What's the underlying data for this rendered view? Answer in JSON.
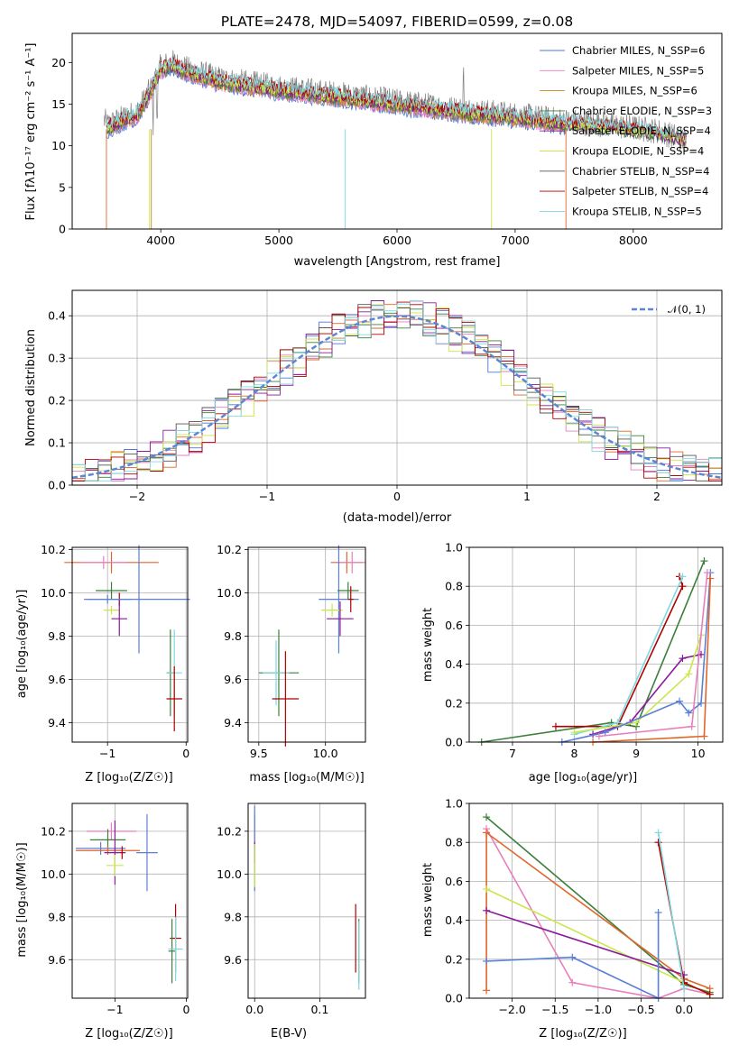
{
  "chart_data": [
    {
      "type": "line",
      "title": "PLATE=2478, MJD=54097, FIBERID=0599, z=0.08",
      "xlabel": "wavelength [Angstrom, rest frame]",
      "ylabel": "Flux [fλ10⁻¹⁷ erg cm⁻² s⁻¹ A⁻¹]",
      "xlim": [
        3250,
        8750
      ],
      "ylim": [
        0,
        23.5
      ],
      "xticks": [
        "4000",
        "5000",
        "6000",
        "7000",
        "8000"
      ],
      "yticks": [
        "0",
        "5",
        "10",
        "15",
        "20"
      ],
      "legend_position": "upper-right",
      "legend": [
        "Chabrier MILES, N_SSP=6",
        "Salpeter MILES, N_SSP=5",
        "Kroupa MILES, N_SSP=6",
        "Chabrier ELODIE, N_SSP=3",
        "Salpeter ELODIE, N_SSP=4",
        "Kroupa ELODIE, N_SSP=4",
        "Chabrier STELIB, N_SSP=4",
        "Salpeter STELIB, N_SSP=4",
        "Kroupa STELIB, N_SSP=5"
      ],
      "series_colors": [
        "#4f78d4",
        "#e87fbd",
        "#c88a1a",
        "#3c7f3c",
        "#8b1a9b",
        "#c8e84a",
        "#555555",
        "#b00000",
        "#7fd8e0"
      ],
      "continuum": {
        "x": [
          3500,
          3550,
          3700,
          3800,
          3900,
          4000,
          4100,
          4200,
          4500,
          5000,
          5500,
          6000,
          6500,
          7000,
          7400,
          7800,
          8200,
          8500
        ],
        "y": [
          13.5,
          12.5,
          13.5,
          14.0,
          16.5,
          19.5,
          20.0,
          19.3,
          18.0,
          17.0,
          16.2,
          15.3,
          14.4,
          13.7,
          13.0,
          12.5,
          11.8,
          10.5
        ]
      }
    },
    {
      "type": "line",
      "xlabel": "(data-model)/error",
      "ylabel": "Normed distribution",
      "xlim": [
        -2.5,
        2.5
      ],
      "ylim": [
        0,
        0.46
      ],
      "xticks": [
        "−2",
        "−1",
        "0",
        "1",
        "2"
      ],
      "yticks": [
        "0.0",
        "0.1",
        "0.2",
        "0.3",
        "0.4"
      ],
      "grid": true,
      "legend_position": "upper-right",
      "legend": [
        "𝒩(0, 1)"
      ],
      "reference_curve": "standard normal, dashed",
      "histogram_series_count": 9
    },
    {
      "type": "scatter",
      "xlabel": "Z [log₁₀(Z/Z☉)]",
      "ylabel": "age  [log₁₀(age/yr)]",
      "xlim": [
        -1.45,
        0.02
      ],
      "ylim": [
        9.31,
        10.21
      ],
      "xticks": [
        "−1",
        "0"
      ],
      "yticks": [
        "9.4",
        "9.6",
        "9.8",
        "10.0",
        "10.2"
      ],
      "grid": true,
      "points": [
        {
          "x": -0.95,
          "y": 10.14,
          "xerr": 0.6,
          "yerr": 0.05,
          "color": "#e0662a"
        },
        {
          "x": -1.05,
          "y": 10.14,
          "xerr": 0.3,
          "yerr": 0.03,
          "color": "#e87fbd"
        },
        {
          "x": -1.0,
          "y": 9.97,
          "xerr": 0.3,
          "yerr": 0.02,
          "color": "#5b7fd6"
        },
        {
          "x": -0.95,
          "y": 10.01,
          "xerr": 0.2,
          "yerr": 0.04,
          "color": "#3c7f3c"
        },
        {
          "x": -0.85,
          "y": 9.97,
          "xerr": 0.02,
          "yerr": 0.03,
          "color": "#b00000"
        },
        {
          "x": -0.95,
          "y": 9.92,
          "xerr": 0.1,
          "yerr": 0.02,
          "color": "#c8e84a"
        },
        {
          "x": -0.85,
          "y": 9.88,
          "xerr": 0.1,
          "yerr": 0.08,
          "color": "#8b1a9b"
        },
        {
          "x": -0.6,
          "y": 9.97,
          "xerr": 0.65,
          "yerr": 0.25,
          "color": "#5b7fd6"
        },
        {
          "x": -0.2,
          "y": 9.63,
          "xerr": 0.05,
          "yerr": 0.2,
          "color": "#3c7f3c"
        },
        {
          "x": -0.15,
          "y": 9.63,
          "xerr": 0.1,
          "yerr": 0.2,
          "color": "#7fd8e0"
        },
        {
          "x": -0.15,
          "y": 9.51,
          "xerr": 0.1,
          "yerr": 0.15,
          "color": "#b00000"
        }
      ]
    },
    {
      "type": "scatter",
      "xlabel": "mass [log₁₀(M/M☉)]",
      "xlim": [
        9.42,
        10.3
      ],
      "ylim": [
        9.31,
        10.21
      ],
      "xticks": [
        "9.5",
        "10.0"
      ],
      "yticks": [
        "9.4",
        "9.6",
        "9.8",
        "10.0",
        "10.2"
      ],
      "grid": true,
      "points": [
        {
          "x": 10.16,
          "y": 10.14,
          "xerr": 0.12,
          "yerr": 0.05,
          "color": "#e0662a"
        },
        {
          "x": 10.2,
          "y": 10.14,
          "xerr": 0.1,
          "yerr": 0.05,
          "color": "#e87fbd"
        },
        {
          "x": 10.1,
          "y": 9.97,
          "xerr": 0.15,
          "yerr": 0.25,
          "color": "#5b7fd6"
        },
        {
          "x": 10.17,
          "y": 10.01,
          "xerr": 0.08,
          "yerr": 0.04,
          "color": "#3c7f3c"
        },
        {
          "x": 10.19,
          "y": 9.97,
          "xerr": 0.02,
          "yerr": 0.06,
          "color": "#b00000"
        },
        {
          "x": 10.05,
          "y": 9.92,
          "xerr": 0.08,
          "yerr": 0.03,
          "color": "#c8e84a"
        },
        {
          "x": 10.11,
          "y": 9.88,
          "xerr": 0.1,
          "yerr": 0.08,
          "color": "#8b1a9b"
        },
        {
          "x": 9.65,
          "y": 9.63,
          "xerr": 0.15,
          "yerr": 0.2,
          "color": "#3c7f3c"
        },
        {
          "x": 9.63,
          "y": 9.63,
          "xerr": 0.1,
          "yerr": 0.15,
          "color": "#7fd8e0"
        },
        {
          "x": 9.7,
          "y": 9.51,
          "xerr": 0.1,
          "yerr": 0.22,
          "color": "#b00000"
        }
      ]
    },
    {
      "type": "line",
      "xlabel": "age  [log₁₀(age/yr)]",
      "ylabel": "mass weight",
      "xlim": [
        6.3,
        10.4
      ],
      "ylim": [
        0,
        1.0
      ],
      "xticks": [
        "7",
        "8",
        "9",
        "10"
      ],
      "yticks": [
        "0.0",
        "0.2",
        "0.4",
        "0.6",
        "0.8",
        "1.0"
      ],
      "grid": true,
      "series": [
        {
          "x": [
            6.5,
            8.6,
            9.0,
            10.1
          ],
          "y": [
            0.0,
            0.1,
            0.08,
            0.93
          ],
          "color": "#3c7f3c"
        },
        {
          "x": [
            7.7,
            8.7,
            9.75,
            9.7
          ],
          "y": [
            0.08,
            0.08,
            0.8,
            0.85
          ],
          "color": "#b00000"
        },
        {
          "x": [
            8.0,
            8.7,
            9.75
          ],
          "y": [
            0.04,
            0.1,
            0.85
          ],
          "color": "#7fd8e0"
        },
        {
          "x": [
            8.3,
            8.9,
            9.75,
            10.05
          ],
          "y": [
            0.04,
            0.1,
            0.43,
            0.45
          ],
          "color": "#8b1a9b"
        },
        {
          "x": [
            8.0,
            9.0,
            9.85,
            10.05
          ],
          "y": [
            0.05,
            0.1,
            0.35,
            0.55
          ],
          "color": "#c8e84a"
        },
        {
          "x": [
            7.8,
            8.5,
            9.7,
            9.85,
            10.05,
            10.2
          ],
          "y": [
            0.0,
            0.05,
            0.21,
            0.15,
            0.2,
            0.87
          ],
          "color": "#5b7fd6"
        },
        {
          "x": [
            8.4,
            9.9,
            10.15
          ],
          "y": [
            0.03,
            0.08,
            0.87
          ],
          "color": "#e87fbd"
        },
        {
          "x": [
            8.3,
            10.1,
            10.2
          ],
          "y": [
            0.0,
            0.03,
            0.84
          ],
          "color": "#e0662a"
        }
      ]
    },
    {
      "type": "scatter",
      "xlabel": "Z [log₁₀(Z/Z☉)]",
      "ylabel": "mass [log₁₀(M/M☉)]",
      "xlim": [
        -1.6,
        0.02
      ],
      "ylim": [
        9.42,
        10.33
      ],
      "xticks": [
        "−1",
        "0"
      ],
      "yticks": [
        "9.6",
        "9.8",
        "10.0",
        "10.2"
      ],
      "grid": true,
      "points": [
        {
          "x": -1.05,
          "y": 10.2,
          "xerr": 0.35,
          "yerr": 0.04,
          "color": "#e87fbd"
        },
        {
          "x": -1.1,
          "y": 10.16,
          "xerr": 0.25,
          "yerr": 0.05,
          "color": "#3c7f3c"
        },
        {
          "x": -1.2,
          "y": 10.12,
          "xerr": 0.35,
          "yerr": 0.03,
          "color": "#5b7fd6"
        },
        {
          "x": -1.1,
          "y": 10.11,
          "xerr": 0.45,
          "yerr": 0.02,
          "color": "#e0662a"
        },
        {
          "x": -1.0,
          "y": 10.1,
          "xerr": 0.15,
          "yerr": 0.15,
          "color": "#8b1a9b"
        },
        {
          "x": -0.9,
          "y": 10.1,
          "xerr": 0.02,
          "yerr": 0.03,
          "color": "#b00000"
        },
        {
          "x": -1.0,
          "y": 10.04,
          "xerr": 0.12,
          "yerr": 0.05,
          "color": "#c8e84a"
        },
        {
          "x": -0.55,
          "y": 10.1,
          "xerr": 0.15,
          "yerr": 0.18,
          "color": "#5b7fd6"
        },
        {
          "x": -0.15,
          "y": 9.7,
          "xerr": 0.08,
          "yerr": 0.16,
          "color": "#b00000"
        },
        {
          "x": -0.2,
          "y": 9.64,
          "xerr": 0.05,
          "yerr": 0.15,
          "color": "#3c7f3c"
        },
        {
          "x": -0.15,
          "y": 9.65,
          "xerr": 0.1,
          "yerr": 0.15,
          "color": "#7fd8e0"
        }
      ]
    },
    {
      "type": "scatter",
      "xlabel": "E(B-V)",
      "xlim": [
        -0.01,
        0.17
      ],
      "ylim": [
        9.42,
        10.33
      ],
      "xticks": [
        "0.0",
        "0.1"
      ],
      "yticks": [
        "9.6",
        "9.8",
        "10.0",
        "10.2"
      ],
      "grid": true,
      "points": [
        {
          "x": 0.0,
          "y": 10.2,
          "xerr": 0.0,
          "yerr": 0.08,
          "color": "#e87fbd"
        },
        {
          "x": 0.0,
          "y": 10.12,
          "xerr": 0.0,
          "yerr": 0.2,
          "color": "#5b7fd6"
        },
        {
          "x": 0.0,
          "y": 10.1,
          "xerr": 0.0,
          "yerr": 0.05,
          "color": "#8b1a9b"
        },
        {
          "x": 0.0,
          "y": 10.04,
          "xerr": 0.0,
          "yerr": 0.1,
          "color": "#c8e84a"
        },
        {
          "x": 0.155,
          "y": 9.7,
          "xerr": 0.0,
          "yerr": 0.16,
          "color": "#b00000"
        },
        {
          "x": 0.16,
          "y": 9.64,
          "xerr": 0.0,
          "yerr": 0.15,
          "color": "#3c7f3c"
        },
        {
          "x": 0.16,
          "y": 9.62,
          "xerr": 0.0,
          "yerr": 0.16,
          "color": "#7fd8e0"
        }
      ]
    },
    {
      "type": "line",
      "xlabel": "Z [log₁₀(Z/Z☉)]",
      "ylabel": "mass weight",
      "xlim": [
        -2.5,
        0.45
      ],
      "ylim": [
        0,
        1.0
      ],
      "xticks": [
        "−2.0",
        "−1.5",
        "−1.0",
        "−0.5",
        "0.0"
      ],
      "yticks": [
        "0.0",
        "0.2",
        "0.4",
        "0.6",
        "0.8",
        "1.0"
      ],
      "grid": true,
      "series": [
        {
          "x": [
            -2.3,
            0.0,
            0.3
          ],
          "y": [
            0.93,
            0.07,
            0.03
          ],
          "color": "#3c7f3c"
        },
        {
          "x": [
            -2.3,
            -1.3,
            -0.3,
            0.0,
            0.3
          ],
          "y": [
            0.87,
            0.08,
            0.0,
            0.05,
            0.02
          ],
          "color": "#e87fbd"
        },
        {
          "x": [
            -2.3,
            -2.3,
            0.0,
            0.3
          ],
          "y": [
            0.04,
            0.85,
            0.1,
            0.05
          ],
          "color": "#e0662a"
        },
        {
          "x": [
            -2.3,
            0.0,
            0.3
          ],
          "y": [
            0.56,
            0.08,
            0.02
          ],
          "color": "#c8e84a"
        },
        {
          "x": [
            -2.3,
            0.0
          ],
          "y": [
            0.45,
            0.12
          ],
          "color": "#8b1a9b"
        },
        {
          "x": [
            -2.3,
            -1.3,
            -0.3,
            -0.3
          ],
          "y": [
            0.19,
            0.21,
            0.0,
            0.44
          ],
          "color": "#5b7fd6"
        },
        {
          "x": [
            -0.3,
            0.0,
            0.3
          ],
          "y": [
            0.8,
            0.08,
            0.02
          ],
          "color": "#b00000"
        },
        {
          "x": [
            -0.3,
            0.0
          ],
          "y": [
            0.85,
            0.05
          ],
          "color": "#7fd8e0"
        }
      ]
    }
  ]
}
